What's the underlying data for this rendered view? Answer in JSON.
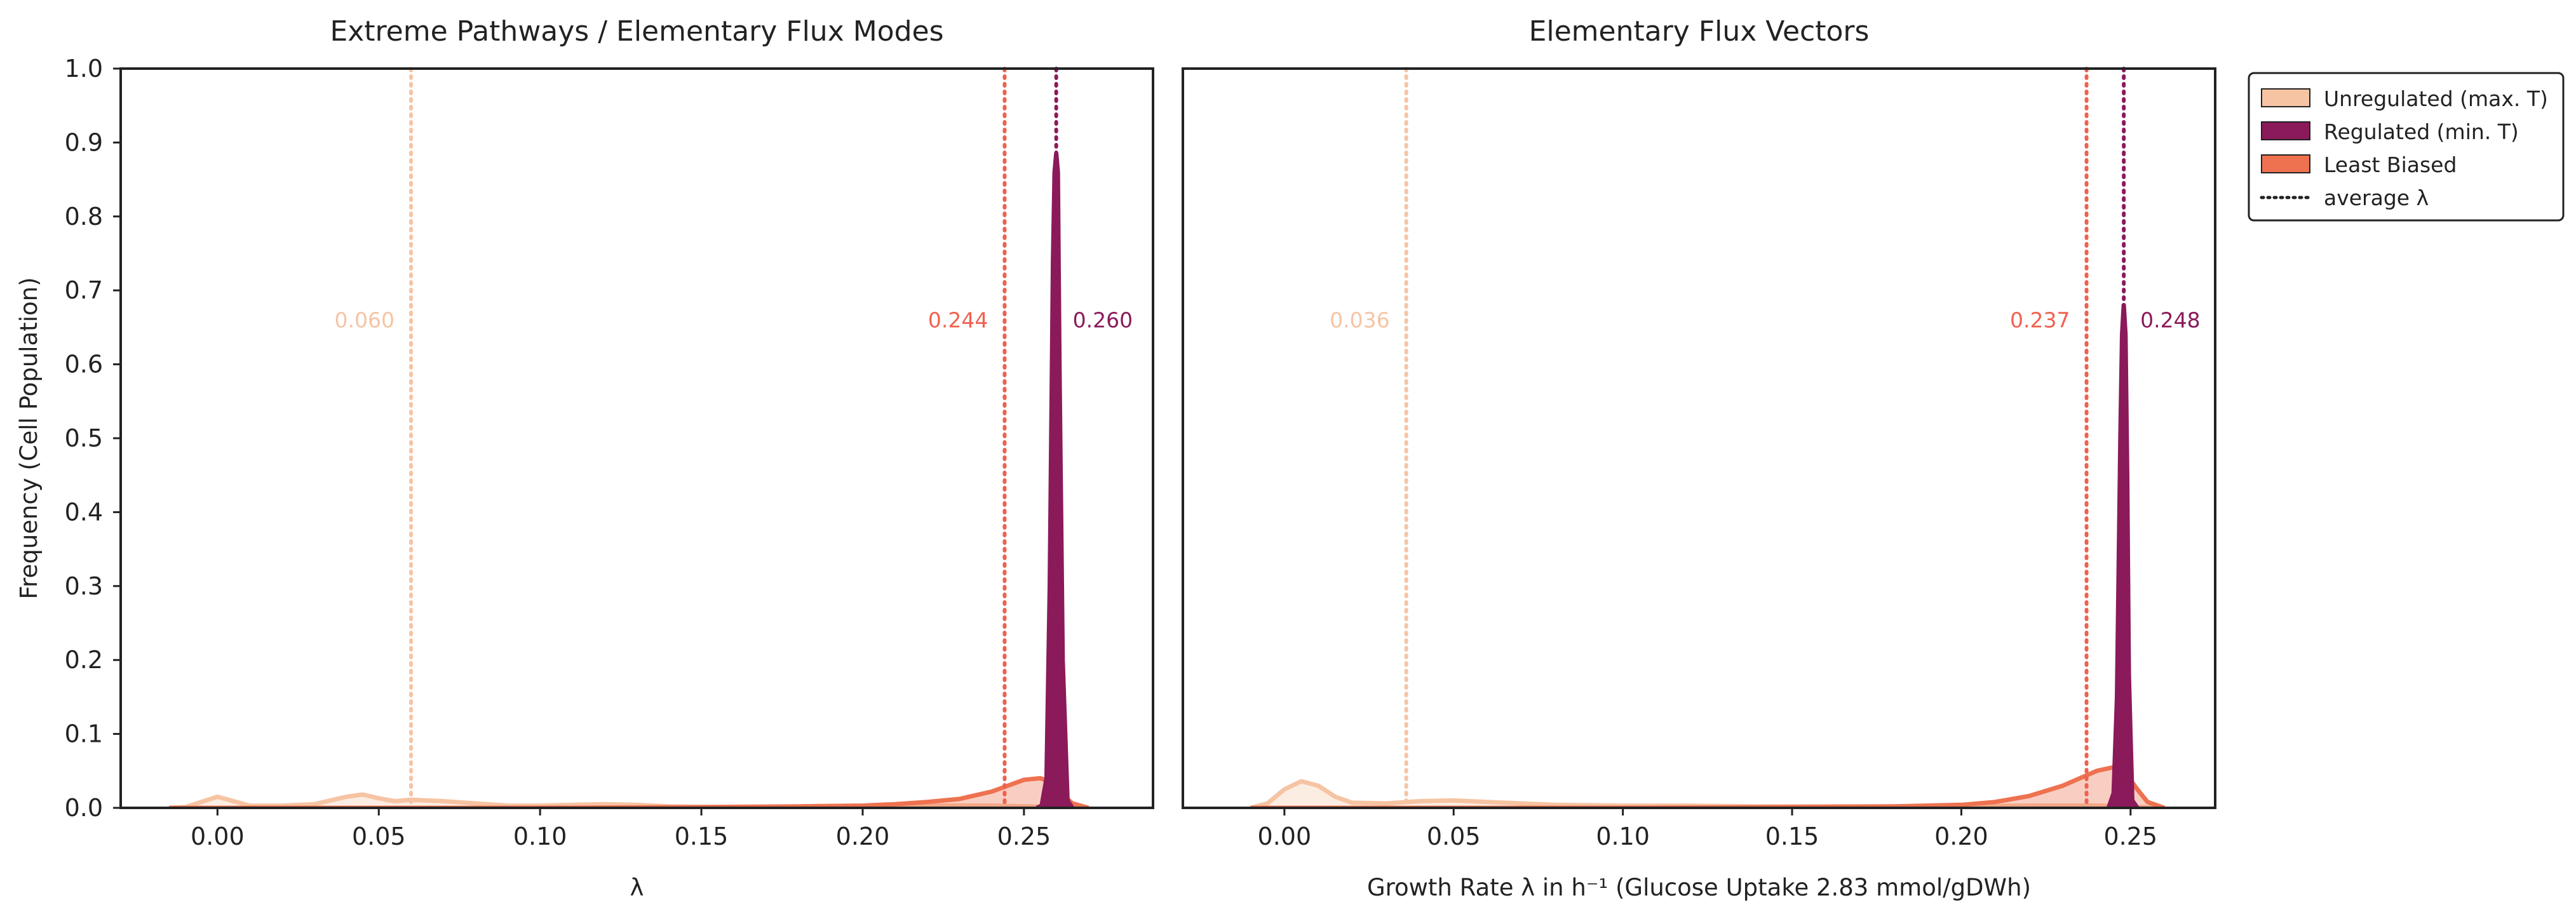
{
  "colors": {
    "unregulated": "#f6c4a3",
    "regulated": "#8b1a5a",
    "least_biased": "#ee7250",
    "least_biased_line": "#f0614f",
    "axis": "#222222",
    "text": "#222222"
  },
  "legend": {
    "placement": "outside-right-top",
    "items": [
      {
        "label": "Unregulated (max. T)",
        "color_key": "unregulated",
        "kind": "patch"
      },
      {
        "label": "Regulated (min. T)",
        "color_key": "regulated",
        "kind": "patch"
      },
      {
        "label": "Least Biased",
        "color_key": "least_biased",
        "kind": "patch"
      },
      {
        "label": "average λ",
        "color_key": "axis",
        "kind": "dotted-line"
      }
    ]
  },
  "chart_data": [
    {
      "type": "area",
      "title": "Extreme Pathways / Elementary Flux Modes",
      "xlabel": "λ",
      "ylabel": "Frequency (Cell Population)",
      "xlim": [
        -0.03,
        0.29
      ],
      "ylim": [
        0,
        1.0
      ],
      "xticks": [
        "0.00",
        "0.05",
        "0.10",
        "0.15",
        "0.20",
        "0.25"
      ],
      "xtick_values": [
        0.0,
        0.05,
        0.1,
        0.15,
        0.2,
        0.25
      ],
      "yticks": [
        "0.0",
        "0.1",
        "0.2",
        "0.3",
        "0.4",
        "0.5",
        "0.6",
        "0.7",
        "0.8",
        "0.9",
        "1.0"
      ],
      "ytick_values": [
        0,
        0.1,
        0.2,
        0.3,
        0.4,
        0.5,
        0.6,
        0.7,
        0.8,
        0.9,
        1.0
      ],
      "grid": false,
      "series": [
        {
          "name": "Unregulated (max. T)",
          "color_key": "unregulated",
          "fill_opacity": 0.3,
          "x": [
            -0.015,
            -0.01,
            -0.005,
            0.0,
            0.005,
            0.01,
            0.02,
            0.03,
            0.04,
            0.045,
            0.05,
            0.055,
            0.06,
            0.07,
            0.08,
            0.09,
            0.1,
            0.11,
            0.12,
            0.13,
            0.14,
            0.15,
            0.16,
            0.18,
            0.2,
            0.22,
            0.24,
            0.26,
            0.27
          ],
          "y": [
            0.0,
            0.001,
            0.008,
            0.015,
            0.009,
            0.003,
            0.003,
            0.005,
            0.015,
            0.018,
            0.013,
            0.009,
            0.011,
            0.009,
            0.006,
            0.003,
            0.003,
            0.004,
            0.005,
            0.004,
            0.002,
            0.001,
            0.001,
            0.001,
            0.002,
            0.003,
            0.003,
            0.001,
            0.0
          ]
        },
        {
          "name": "Least Biased",
          "color_key": "least_biased",
          "fill_opacity": 0.35,
          "x": [
            -0.015,
            0.0,
            0.05,
            0.1,
            0.15,
            0.18,
            0.2,
            0.21,
            0.22,
            0.23,
            0.24,
            0.245,
            0.25,
            0.255,
            0.258,
            0.262,
            0.265,
            0.27
          ],
          "y": [
            0.0,
            0.0,
            0.0,
            0.0,
            0.001,
            0.002,
            0.003,
            0.005,
            0.008,
            0.012,
            0.022,
            0.03,
            0.038,
            0.04,
            0.036,
            0.018,
            0.006,
            0.0
          ]
        },
        {
          "name": "Regulated (min. T)",
          "color_key": "regulated",
          "fill_opacity": 1.0,
          "x": [
            0.254,
            0.2555,
            0.257,
            0.258,
            0.259,
            0.2595,
            0.26,
            0.2605,
            0.261,
            0.262,
            0.2635,
            0.265
          ],
          "y": [
            0.0,
            0.003,
            0.04,
            0.3,
            0.74,
            0.86,
            0.885,
            0.86,
            0.6,
            0.2,
            0.01,
            0.0
          ]
        }
      ],
      "averages": [
        {
          "value": 0.06,
          "label": "0.060",
          "color_key": "unregulated",
          "label_side": "left"
        },
        {
          "value": 0.244,
          "label": "0.244",
          "color_key": "least_biased_line",
          "label_side": "left"
        },
        {
          "value": 0.26,
          "label": "0.260",
          "color_key": "regulated",
          "label_side": "right"
        }
      ]
    },
    {
      "type": "area",
      "title": "Elementary Flux Vectors",
      "xlabel": "Growth Rate λ in h⁻¹ (Glucose Uptake 2.83 mmol/gDWh)",
      "ylabel": "",
      "xlim": [
        -0.03,
        0.275
      ],
      "ylim": [
        0,
        1.0
      ],
      "xticks": [
        "0.00",
        "0.05",
        "0.10",
        "0.15",
        "0.20",
        "0.25"
      ],
      "xtick_values": [
        0.0,
        0.05,
        0.1,
        0.15,
        0.2,
        0.25
      ],
      "grid": false,
      "series": [
        {
          "name": "Unregulated (max. T)",
          "color_key": "unregulated",
          "fill_opacity": 0.3,
          "x": [
            -0.01,
            -0.005,
            0.0,
            0.005,
            0.01,
            0.015,
            0.02,
            0.03,
            0.04,
            0.05,
            0.06,
            0.08,
            0.1,
            0.12,
            0.14,
            0.16,
            0.18,
            0.2,
            0.22,
            0.24,
            0.26
          ],
          "y": [
            0.0,
            0.006,
            0.025,
            0.036,
            0.03,
            0.015,
            0.007,
            0.006,
            0.009,
            0.01,
            0.008,
            0.004,
            0.003,
            0.003,
            0.002,
            0.002,
            0.002,
            0.002,
            0.003,
            0.003,
            0.0
          ]
        },
        {
          "name": "Least Biased",
          "color_key": "least_biased",
          "fill_opacity": 0.35,
          "x": [
            -0.01,
            0.0,
            0.05,
            0.1,
            0.15,
            0.18,
            0.2,
            0.21,
            0.22,
            0.23,
            0.235,
            0.24,
            0.245,
            0.248,
            0.252,
            0.255,
            0.26
          ],
          "y": [
            0.0,
            0.0,
            0.0,
            0.0,
            0.001,
            0.002,
            0.004,
            0.008,
            0.016,
            0.03,
            0.04,
            0.05,
            0.055,
            0.05,
            0.025,
            0.008,
            0.0
          ]
        },
        {
          "name": "Regulated (min. T)",
          "color_key": "regulated",
          "fill_opacity": 1.0,
          "x": [
            0.2435,
            0.245,
            0.246,
            0.247,
            0.2475,
            0.248,
            0.2485,
            0.249,
            0.2495,
            0.2505,
            0.252
          ],
          "y": [
            0.0,
            0.02,
            0.15,
            0.5,
            0.64,
            0.68,
            0.64,
            0.45,
            0.18,
            0.01,
            0.0
          ]
        }
      ],
      "averages": [
        {
          "value": 0.036,
          "label": "0.036",
          "color_key": "unregulated",
          "label_side": "left"
        },
        {
          "value": 0.237,
          "label": "0.237",
          "color_key": "least_biased_line",
          "label_side": "left"
        },
        {
          "value": 0.248,
          "label": "0.248",
          "color_key": "regulated",
          "label_side": "right"
        }
      ]
    }
  ]
}
